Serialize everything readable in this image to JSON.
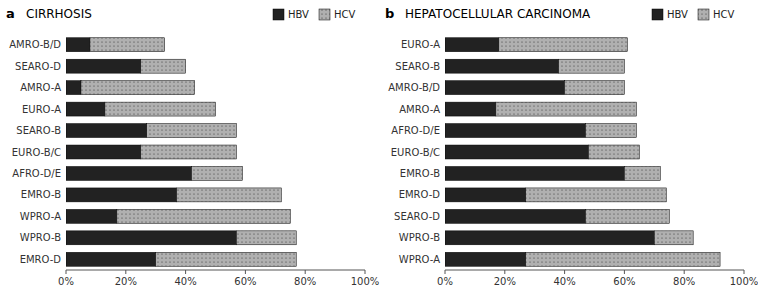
{
  "chart_data": [
    {
      "type": "bar",
      "orientation": "horizontal",
      "stacked": true,
      "title": "CIRRHOSIS",
      "annotations": [
        "a"
      ],
      "categories": [
        "AMRO-B/D",
        "SEARO-D",
        "AMRO-A",
        "EURO-A",
        "SEARO-B",
        "EURO-B/C",
        "AFRO-D/E",
        "EMRO-B",
        "WPRO-A",
        "WPRO-B",
        "EMRO-D"
      ],
      "series": [
        {
          "name": "HBV",
          "color": "#222222",
          "values": [
            8,
            25,
            5,
            13,
            27,
            25,
            42,
            37,
            17,
            57,
            30
          ]
        },
        {
          "name": "HCV",
          "color": "#b0b0b0",
          "values": [
            25,
            15,
            38,
            37,
            30,
            32,
            17,
            35,
            58,
            20,
            47
          ]
        }
      ],
      "xlim": [
        0,
        100
      ],
      "xticks": [
        {
          "value": 0,
          "label": "0%"
        },
        {
          "value": 20,
          "label": "20%"
        },
        {
          "value": 40,
          "label": "40%"
        },
        {
          "value": 60,
          "label": "60%"
        },
        {
          "value": 80,
          "label": "80%"
        },
        {
          "value": 100,
          "label": "100%"
        }
      ],
      "grid": false,
      "legend": "upper right"
    },
    {
      "type": "bar",
      "orientation": "horizontal",
      "stacked": true,
      "title": "HEPATOCELLULAR CARCINOMA",
      "annotations": [
        "b"
      ],
      "categories": [
        "EURO-A",
        "SEARO-B",
        "AMRO-B/D",
        "AMRO-A",
        "AFRO-D/E",
        "EURO-B/C",
        "EMRO-B",
        "EMRO-D",
        "SEARO-D",
        "WPRO-B",
        "WPRO-A"
      ],
      "series": [
        {
          "name": "HBV",
          "color": "#222222",
          "values": [
            18,
            38,
            40,
            17,
            47,
            48,
            60,
            27,
            47,
            70,
            27
          ]
        },
        {
          "name": "HCV",
          "color": "#b0b0b0",
          "values": [
            43,
            22,
            20,
            47,
            17,
            17,
            12,
            47,
            28,
            13,
            65
          ]
        }
      ],
      "xlim": [
        0,
        100
      ],
      "xticks": [
        {
          "value": 0,
          "label": "0%"
        },
        {
          "value": 20,
          "label": "20%"
        },
        {
          "value": 40,
          "label": "40%"
        },
        {
          "value": 60,
          "label": "60%"
        },
        {
          "value": 80,
          "label": "80%"
        },
        {
          "value": 100,
          "label": "100%"
        }
      ],
      "grid": false,
      "legend": "upper right"
    }
  ]
}
